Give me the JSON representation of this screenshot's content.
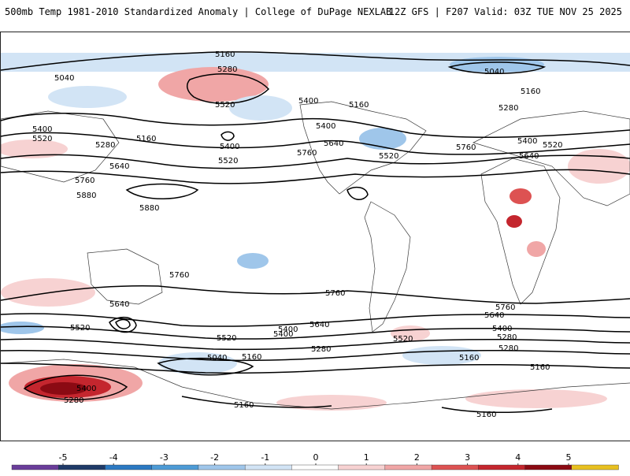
{
  "header": {
    "title": "500mb Temp 1981-2010 Standardized Anomaly | College of DuPage NEXLAB",
    "run_info": "12Z GFS | F207 Valid: 03Z TUE NOV 25 2025"
  },
  "colorbar": {
    "ticks": [
      "-5",
      "-4",
      "-3",
      "-2",
      "-1",
      "0",
      "1",
      "2",
      "3",
      "4",
      "5"
    ],
    "colors": [
      "#6a3d9a",
      "#1f3a68",
      "#2b79c2",
      "#4d9bd6",
      "#9fc6ea",
      "#d2e4f5",
      "#ffffff",
      "#f7d2d2",
      "#f0a6a6",
      "#dd5252",
      "#c4262e",
      "#8b0a13",
      "#e8c020"
    ]
  },
  "map": {
    "contour_labels": [
      "5160",
      "5040",
      "5280",
      "5520",
      "5400",
      "5160",
      "5040",
      "5160",
      "5280",
      "5400",
      "5520",
      "5280",
      "5160",
      "5400",
      "5520",
      "5640",
      "5760",
      "5880",
      "5400",
      "5640",
      "5520",
      "5760",
      "5880",
      "5760",
      "5400",
      "5520",
      "5640",
      "5760",
      "5640",
      "5520",
      "5400",
      "5280",
      "5160",
      "5760",
      "5640",
      "5520",
      "5400",
      "5280",
      "5160",
      "5040",
      "5160",
      "5280",
      "5400",
      "5520",
      "5400",
      "5280",
      "5160",
      "5160",
      "5640",
      "5760"
    ]
  }
}
